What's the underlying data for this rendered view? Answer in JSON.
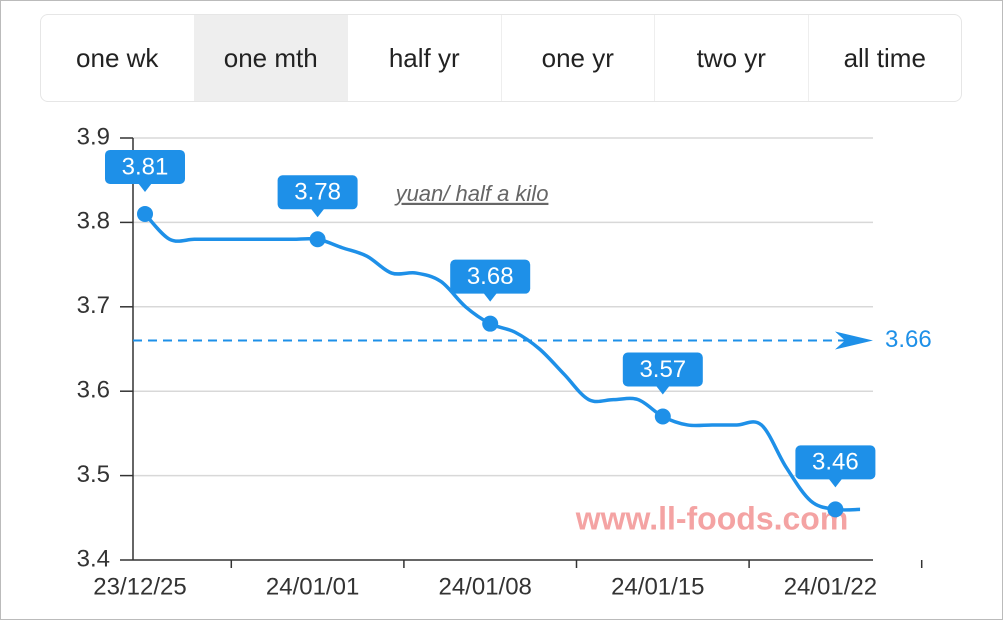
{
  "tabs": {
    "items": [
      "one wk",
      "one mth",
      "half yr",
      "one yr",
      "two yr",
      "all time"
    ],
    "active": 1
  },
  "chart_data": {
    "type": "line",
    "unit_note": "yuan/ half a kilo",
    "watermark": "www.ll-foods.com",
    "x": [
      "23/12/25",
      "23/12/26",
      "23/12/27",
      "23/12/28",
      "23/12/29",
      "23/12/30",
      "23/12/31",
      "24/01/01",
      "24/01/02",
      "24/01/03",
      "24/01/04",
      "24/01/05",
      "24/01/06",
      "24/01/07",
      "24/01/08",
      "24/01/09",
      "24/01/10",
      "24/01/11",
      "24/01/12",
      "24/01/13",
      "24/01/14",
      "24/01/15",
      "24/01/16",
      "24/01/17",
      "24/01/18",
      "24/01/19",
      "24/01/20",
      "24/01/21",
      "24/01/22",
      "24/01/23"
    ],
    "series": [
      {
        "color": "#1e90e8",
        "values": [
          3.81,
          3.78,
          3.78,
          3.78,
          3.78,
          3.78,
          3.78,
          3.78,
          3.77,
          3.76,
          3.74,
          3.74,
          3.73,
          3.7,
          3.68,
          3.67,
          3.65,
          3.62,
          3.59,
          3.59,
          3.59,
          3.57,
          3.56,
          3.56,
          3.56,
          3.56,
          3.51,
          3.47,
          3.46,
          3.46
        ]
      }
    ],
    "reference_line": {
      "value": 3.66,
      "color": "#1e90e8"
    },
    "ylim": [
      3.4,
      3.9
    ],
    "yticks": [
      3.4,
      3.5,
      3.6,
      3.7,
      3.8,
      3.9
    ],
    "xticks": [
      "23/12/25",
      "24/01/01",
      "24/01/08",
      "24/01/15",
      "24/01/22"
    ],
    "grid": true
  }
}
